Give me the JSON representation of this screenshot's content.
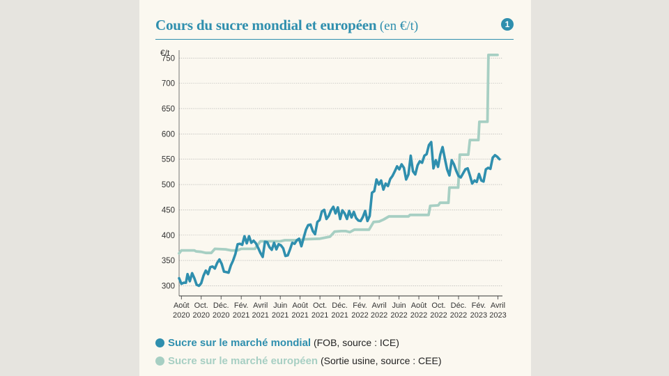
{
  "figure": {
    "title": "Cours du sucre mondial et européen",
    "title_unit": "(en €/t)",
    "number": "1"
  },
  "colors": {
    "world": "#2f8fae",
    "europe": "#a7cfc3",
    "accent": "#2f8fae"
  },
  "legend": [
    {
      "name": "Sucre sur le marché mondial",
      "detail": "(FOB, source : ICE)",
      "color": "#2f8fae"
    },
    {
      "name": "Sucre sur le marché européen",
      "detail": "(Sortie usine, source : CEE)",
      "color": "#a7cfc3"
    }
  ],
  "chart_data": {
    "type": "line",
    "ylabel": "€/t",
    "ylim": [
      280,
      760
    ],
    "yticks": [
      300,
      350,
      400,
      450,
      500,
      550,
      600,
      650,
      700,
      750
    ],
    "xlim": [
      "2020-07-25",
      "2023-04-15"
    ],
    "grid": true,
    "x_ticks": [
      {
        "date": "2020-08-01",
        "line1": "Août",
        "line2": "2020"
      },
      {
        "date": "2020-10-01",
        "line1": "Oct.",
        "line2": "2020"
      },
      {
        "date": "2020-12-01",
        "line1": "Déc.",
        "line2": "2020"
      },
      {
        "date": "2021-02-01",
        "line1": "Fév.",
        "line2": "2021"
      },
      {
        "date": "2021-04-01",
        "line1": "Avril",
        "line2": "2021"
      },
      {
        "date": "2021-06-01",
        "line1": "Juin",
        "line2": "2021"
      },
      {
        "date": "2021-08-01",
        "line1": "Août",
        "line2": "2021"
      },
      {
        "date": "2021-10-01",
        "line1": "Oct.",
        "line2": "2021"
      },
      {
        "date": "2021-12-01",
        "line1": "Déc.",
        "line2": "2021"
      },
      {
        "date": "2022-02-01",
        "line1": "Fév.",
        "line2": "2022"
      },
      {
        "date": "2022-04-01",
        "line1": "Avril",
        "line2": "2022"
      },
      {
        "date": "2022-06-01",
        "line1": "Juin",
        "line2": "2022"
      },
      {
        "date": "2022-08-01",
        "line1": "Août",
        "line2": "2022"
      },
      {
        "date": "2022-10-01",
        "line1": "Oct.",
        "line2": "2022"
      },
      {
        "date": "2022-12-01",
        "line1": "Déc.",
        "line2": "2022"
      },
      {
        "date": "2023-02-01",
        "line1": "Fév.",
        "line2": "2023"
      },
      {
        "date": "2023-04-01",
        "line1": "Avril",
        "line2": "2023"
      }
    ],
    "series": [
      {
        "name": "Sucre sur le marché mondial",
        "points": [
          [
            "2020-07-25",
            315
          ],
          [
            "2020-08-01",
            304
          ],
          [
            "2020-08-08",
            306
          ],
          [
            "2020-08-15",
            306
          ],
          [
            "2020-08-20",
            323
          ],
          [
            "2020-08-27",
            309
          ],
          [
            "2020-09-03",
            325
          ],
          [
            "2020-09-10",
            315
          ],
          [
            "2020-09-17",
            302
          ],
          [
            "2020-09-24",
            300
          ],
          [
            "2020-10-01",
            305
          ],
          [
            "2020-10-08",
            320
          ],
          [
            "2020-10-15",
            330
          ],
          [
            "2020-10-22",
            323
          ],
          [
            "2020-10-29",
            337
          ],
          [
            "2020-11-05",
            338
          ],
          [
            "2020-11-12",
            334
          ],
          [
            "2020-11-19",
            345
          ],
          [
            "2020-11-26",
            352
          ],
          [
            "2020-12-03",
            343
          ],
          [
            "2020-12-10",
            328
          ],
          [
            "2020-12-17",
            327
          ],
          [
            "2020-12-24",
            326
          ],
          [
            "2020-12-31",
            340
          ],
          [
            "2021-01-07",
            350
          ],
          [
            "2021-01-14",
            363
          ],
          [
            "2021-01-21",
            382
          ],
          [
            "2021-01-28",
            383
          ],
          [
            "2021-02-04",
            381
          ],
          [
            "2021-02-11",
            398
          ],
          [
            "2021-02-18",
            384
          ],
          [
            "2021-02-25",
            398
          ],
          [
            "2021-03-04",
            385
          ],
          [
            "2021-03-11",
            389
          ],
          [
            "2021-03-18",
            384
          ],
          [
            "2021-03-25",
            375
          ],
          [
            "2021-04-01",
            365
          ],
          [
            "2021-04-08",
            357
          ],
          [
            "2021-04-15",
            387
          ],
          [
            "2021-04-22",
            386
          ],
          [
            "2021-04-29",
            376
          ],
          [
            "2021-05-06",
            371
          ],
          [
            "2021-05-13",
            385
          ],
          [
            "2021-05-20",
            372
          ],
          [
            "2021-05-27",
            382
          ],
          [
            "2021-06-03",
            380
          ],
          [
            "2021-06-10",
            374
          ],
          [
            "2021-06-17",
            359
          ],
          [
            "2021-06-24",
            360
          ],
          [
            "2021-07-01",
            372
          ],
          [
            "2021-07-08",
            385
          ],
          [
            "2021-07-15",
            383
          ],
          [
            "2021-07-22",
            390
          ],
          [
            "2021-07-29",
            393
          ],
          [
            "2021-08-05",
            378
          ],
          [
            "2021-08-12",
            395
          ],
          [
            "2021-08-19",
            411
          ],
          [
            "2021-08-26",
            420
          ],
          [
            "2021-09-02",
            421
          ],
          [
            "2021-09-09",
            408
          ],
          [
            "2021-09-16",
            402
          ],
          [
            "2021-09-23",
            426
          ],
          [
            "2021-09-30",
            430
          ],
          [
            "2021-10-07",
            447
          ],
          [
            "2021-10-14",
            450
          ],
          [
            "2021-10-21",
            432
          ],
          [
            "2021-10-28",
            438
          ],
          [
            "2021-11-04",
            449
          ],
          [
            "2021-11-11",
            456
          ],
          [
            "2021-11-18",
            443
          ],
          [
            "2021-11-25",
            455
          ],
          [
            "2021-12-02",
            432
          ],
          [
            "2021-12-09",
            449
          ],
          [
            "2021-12-16",
            443
          ],
          [
            "2021-12-23",
            432
          ],
          [
            "2021-12-30",
            448
          ],
          [
            "2022-01-06",
            435
          ],
          [
            "2022-01-13",
            446
          ],
          [
            "2022-01-20",
            434
          ],
          [
            "2022-01-27",
            429
          ],
          [
            "2022-02-03",
            428
          ],
          [
            "2022-02-10",
            436
          ],
          [
            "2022-02-17",
            448
          ],
          [
            "2022-02-24",
            428
          ],
          [
            "2022-03-03",
            438
          ],
          [
            "2022-03-10",
            484
          ],
          [
            "2022-03-17",
            487
          ],
          [
            "2022-03-24",
            510
          ],
          [
            "2022-03-31",
            500
          ],
          [
            "2022-04-07",
            508
          ],
          [
            "2022-04-14",
            490
          ],
          [
            "2022-04-21",
            502
          ],
          [
            "2022-04-28",
            497
          ],
          [
            "2022-05-05",
            511
          ],
          [
            "2022-05-12",
            517
          ],
          [
            "2022-05-19",
            526
          ],
          [
            "2022-05-26",
            536
          ],
          [
            "2022-06-02",
            530
          ],
          [
            "2022-06-09",
            540
          ],
          [
            "2022-06-16",
            533
          ],
          [
            "2022-06-23",
            510
          ],
          [
            "2022-06-30",
            520
          ],
          [
            "2022-07-07",
            557
          ],
          [
            "2022-07-14",
            526
          ],
          [
            "2022-07-21",
            520
          ],
          [
            "2022-07-28",
            538
          ],
          [
            "2022-08-04",
            546
          ],
          [
            "2022-08-11",
            543
          ],
          [
            "2022-08-18",
            557
          ],
          [
            "2022-08-25",
            560
          ],
          [
            "2022-09-01",
            578
          ],
          [
            "2022-09-08",
            584
          ],
          [
            "2022-09-15",
            532
          ],
          [
            "2022-09-22",
            548
          ],
          [
            "2022-09-29",
            535
          ],
          [
            "2022-10-06",
            559
          ],
          [
            "2022-10-13",
            574
          ],
          [
            "2022-10-20",
            551
          ],
          [
            "2022-10-27",
            530
          ],
          [
            "2022-11-03",
            518
          ],
          [
            "2022-11-10",
            548
          ],
          [
            "2022-11-17",
            540
          ],
          [
            "2022-11-24",
            527
          ],
          [
            "2022-12-01",
            517
          ],
          [
            "2022-12-08",
            514
          ],
          [
            "2022-12-15",
            522
          ],
          [
            "2022-12-22",
            530
          ],
          [
            "2022-12-29",
            532
          ],
          [
            "2023-01-05",
            518
          ],
          [
            "2023-01-12",
            502
          ],
          [
            "2023-01-19",
            508
          ],
          [
            "2023-01-26",
            505
          ],
          [
            "2023-02-02",
            521
          ],
          [
            "2023-02-09",
            508
          ],
          [
            "2023-02-16",
            506
          ],
          [
            "2023-02-23",
            530
          ],
          [
            "2023-03-02",
            533
          ],
          [
            "2023-03-09",
            531
          ],
          [
            "2023-03-16",
            553
          ],
          [
            "2023-03-23",
            558
          ],
          [
            "2023-03-30",
            555
          ],
          [
            "2023-04-06",
            550
          ]
        ]
      },
      {
        "name": "Sucre sur le marché européen",
        "points": [
          [
            "2020-07-25",
            364
          ],
          [
            "2020-08-01",
            370
          ],
          [
            "2020-09-10",
            370
          ],
          [
            "2020-09-15",
            368
          ],
          [
            "2020-10-01",
            367
          ],
          [
            "2020-10-15",
            365
          ],
          [
            "2020-11-01",
            365
          ],
          [
            "2020-11-12",
            373
          ],
          [
            "2020-12-15",
            372
          ],
          [
            "2021-01-01",
            370
          ],
          [
            "2021-01-20",
            370
          ],
          [
            "2021-02-01",
            373
          ],
          [
            "2021-03-15",
            373
          ],
          [
            "2021-04-01",
            388
          ],
          [
            "2021-06-01",
            388
          ],
          [
            "2021-06-15",
            390
          ],
          [
            "2021-08-01",
            390
          ],
          [
            "2021-08-15",
            392
          ],
          [
            "2021-10-01",
            393
          ],
          [
            "2021-11-01",
            397
          ],
          [
            "2021-11-15",
            407
          ],
          [
            "2021-12-05",
            408
          ],
          [
            "2021-12-20",
            408
          ],
          [
            "2022-01-01",
            406
          ],
          [
            "2022-01-15",
            411
          ],
          [
            "2022-03-01",
            411
          ],
          [
            "2022-03-15",
            426
          ],
          [
            "2022-04-01",
            427
          ],
          [
            "2022-04-15",
            431
          ],
          [
            "2022-05-01",
            437
          ],
          [
            "2022-06-30",
            437
          ],
          [
            "2022-07-05",
            440
          ],
          [
            "2022-08-31",
            440
          ],
          [
            "2022-09-05",
            458
          ],
          [
            "2022-09-30",
            459
          ],
          [
            "2022-10-05",
            464
          ],
          [
            "2022-10-31",
            464
          ],
          [
            "2022-11-03",
            494
          ],
          [
            "2022-11-30",
            494
          ],
          [
            "2022-12-05",
            559
          ],
          [
            "2022-12-31",
            559
          ],
          [
            "2023-01-05",
            588
          ],
          [
            "2023-01-31",
            588
          ],
          [
            "2023-02-03",
            624
          ],
          [
            "2023-02-28",
            624
          ],
          [
            "2023-03-03",
            756
          ],
          [
            "2023-03-31",
            756
          ]
        ]
      }
    ]
  }
}
